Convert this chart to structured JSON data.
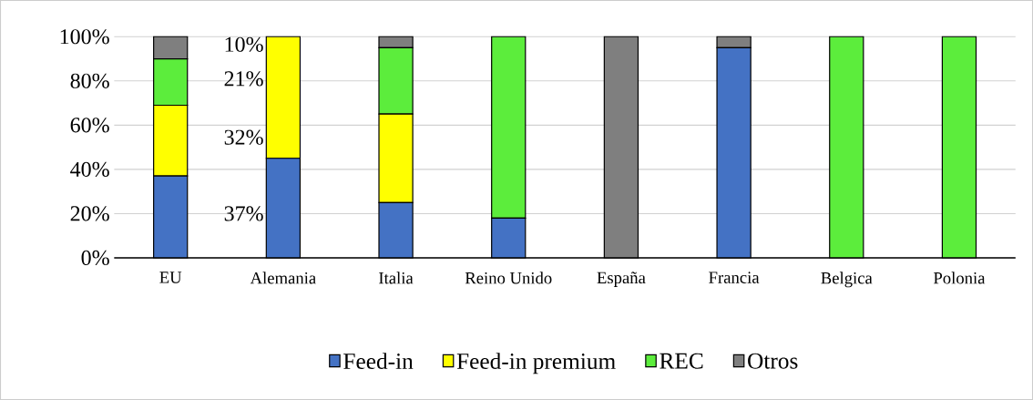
{
  "chart_data": {
    "type": "bar",
    "stacked": true,
    "categories": [
      "EU",
      "Alemania",
      "Italia",
      "Reino Unido",
      "España",
      "Francia",
      "Belgica",
      "Polonia"
    ],
    "series": [
      {
        "name": "Feed-in",
        "color": "#4472c4",
        "values": [
          37,
          45,
          25,
          18,
          0,
          95,
          0,
          0
        ]
      },
      {
        "name": "Feed-in premium",
        "color": "#ffff00",
        "values": [
          32,
          55,
          40,
          0,
          0,
          0,
          0,
          0
        ]
      },
      {
        "name": "REC",
        "color": "#5ced3c",
        "values": [
          21,
          0,
          30,
          82,
          0,
          0,
          100,
          100
        ]
      },
      {
        "name": "Otros",
        "color": "#7f7f7f",
        "values": [
          10,
          0,
          5,
          0,
          100,
          5,
          0,
          0
        ]
      }
    ],
    "annotations": [
      "37%",
      "32%",
      "21%",
      "10%"
    ],
    "ylim": [
      0,
      100
    ],
    "yticks": [
      {
        "value": 0,
        "label": "0%"
      },
      {
        "value": 20,
        "label": "20%"
      },
      {
        "value": 40,
        "label": "40%"
      },
      {
        "value": 60,
        "label": "60%"
      },
      {
        "value": 80,
        "label": "80%"
      },
      {
        "value": 100,
        "label": "100%"
      }
    ],
    "grid": "y",
    "legend": "bottom"
  }
}
